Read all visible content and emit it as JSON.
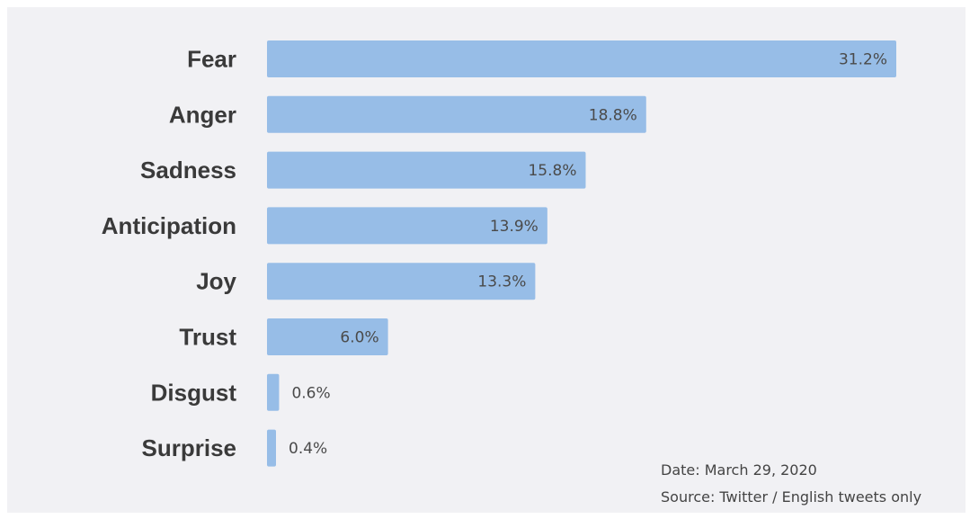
{
  "chart_data": {
    "type": "bar",
    "orientation": "horizontal",
    "categories": [
      "Fear",
      "Anger",
      "Sadness",
      "Anticipation",
      "Joy",
      "Trust",
      "Disgust",
      "Surprise"
    ],
    "values": [
      31.2,
      18.8,
      15.8,
      13.9,
      13.3,
      6.0,
      0.6,
      0.4
    ],
    "value_labels": [
      "31.2%",
      "18.8%",
      "15.8%",
      "13.9%",
      "13.3%",
      "6.0%",
      "0.6%",
      "0.4%"
    ],
    "unit": "%",
    "xlim": [
      0,
      31.2
    ],
    "grid": false,
    "title": "",
    "xlabel": "",
    "ylabel": ""
  },
  "notes": {
    "date": "Date: March 29, 2020",
    "source": "Source: Twitter / English tweets only"
  },
  "colors": {
    "bar": "#97bde7",
    "background": "#f1f1f4",
    "label_text": "#3a3a3a",
    "value_text": "#4a4a4a"
  }
}
